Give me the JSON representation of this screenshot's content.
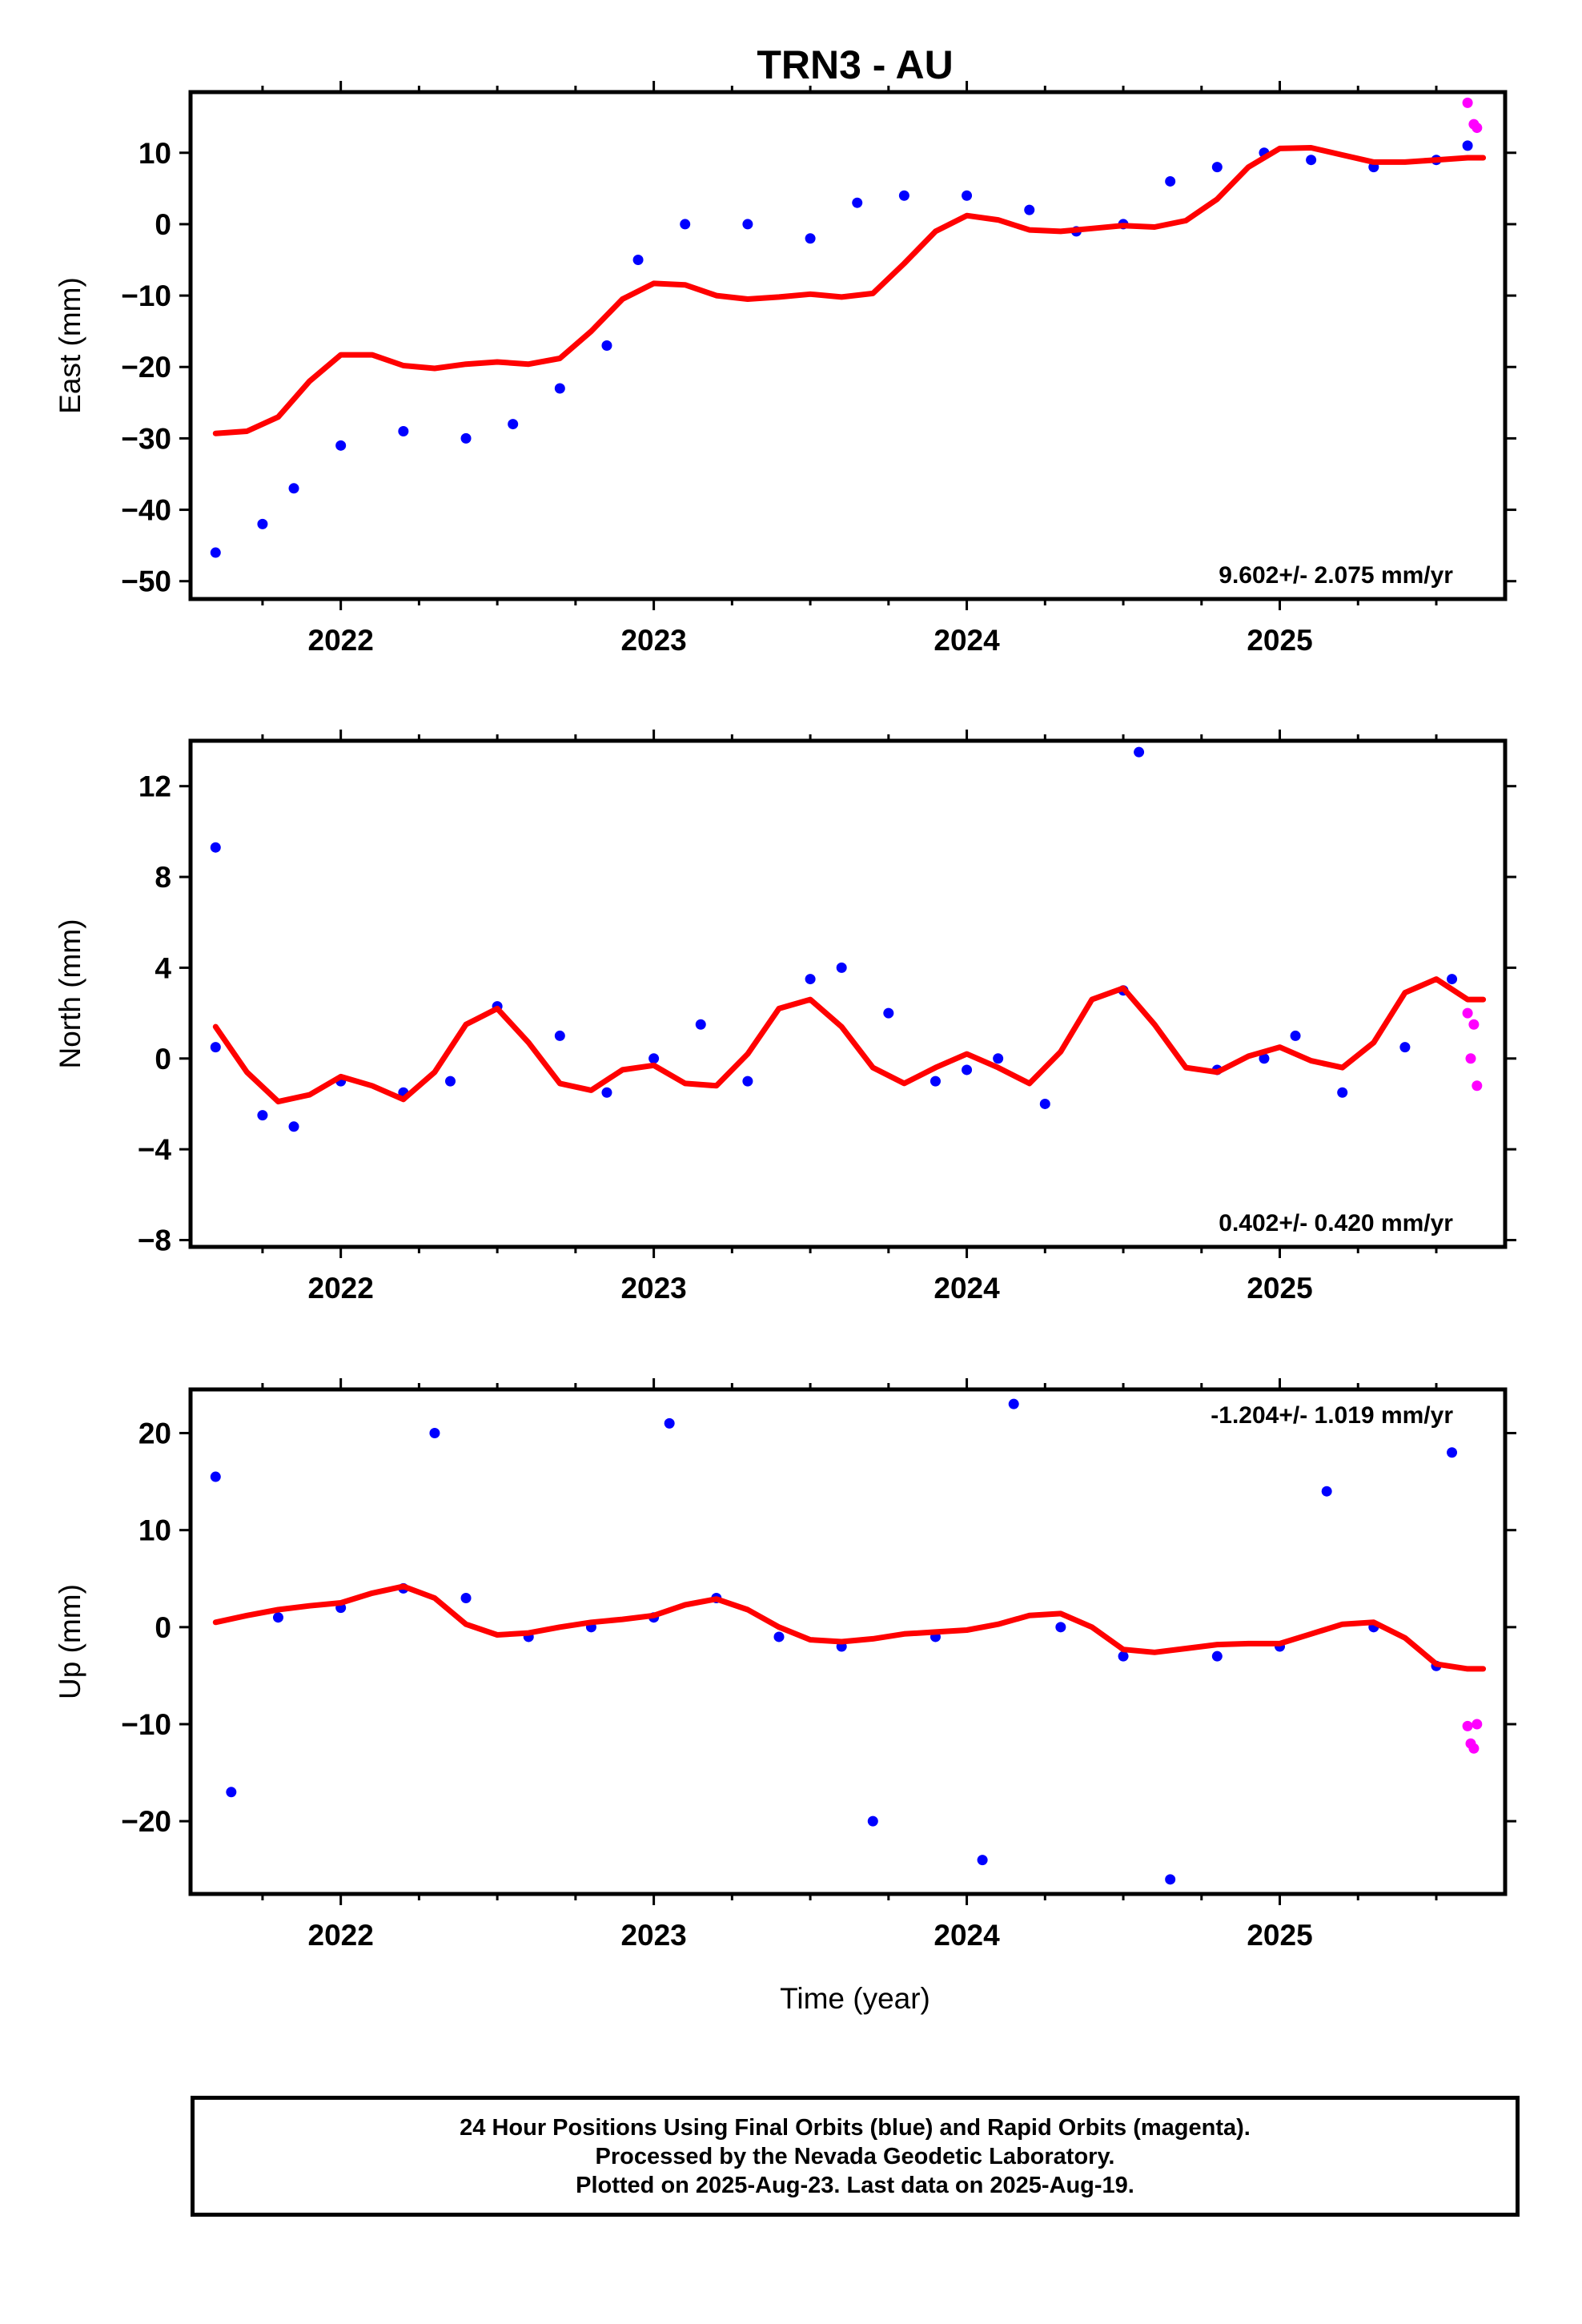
{
  "chart_data": [
    {
      "type": "scatter",
      "title": "TRN3 - AU",
      "ylabel": "East (mm)",
      "xlabel": "",
      "xlim": [
        2021.52,
        2025.72
      ],
      "ylim": [
        -52.5,
        18.5
      ],
      "x_ticks": [
        "2022",
        "2023",
        "2024",
        "2025"
      ],
      "y_ticks": [
        "10",
        "0",
        "−10",
        "−20",
        "−30",
        "−40",
        "−50"
      ],
      "y_tick_values": [
        10,
        0,
        -10,
        -20,
        -30,
        -40,
        -50
      ],
      "grid": false,
      "annotation": "9.602+/- 2.075 mm/yr",
      "annotation_position": "bottom-right",
      "series": [
        {
          "role": "final orbits",
          "color": "#0000ff",
          "marker": "dot",
          "x": [
            2021.6,
            2021.75,
            2021.85,
            2022.0,
            2022.2,
            2022.4,
            2022.55,
            2022.7,
            2022.85,
            2022.95,
            2023.1,
            2023.3,
            2023.5,
            2023.65,
            2023.8,
            2024.0,
            2024.2,
            2024.35,
            2024.5,
            2024.65,
            2024.8,
            2024.95,
            2025.1,
            2025.3,
            2025.5,
            2025.6
          ],
          "y": [
            -46,
            -42,
            -37,
            -31,
            -29,
            -30,
            -28,
            -23,
            -17,
            -5,
            0,
            0,
            -2,
            3,
            4,
            4,
            2,
            -1,
            0,
            6,
            8,
            10,
            9,
            8,
            9,
            11
          ]
        },
        {
          "role": "rapid orbits",
          "color": "#ff00ff",
          "marker": "dot",
          "x": [
            2025.6,
            2025.62,
            2025.63
          ],
          "y": [
            17,
            14,
            13.5
          ]
        },
        {
          "role": "trend fit",
          "color": "#ff0000",
          "line": true,
          "x": [
            2021.6,
            2021.7,
            2021.8,
            2021.9,
            2022.0,
            2022.1,
            2022.2,
            2022.3,
            2022.4,
            2022.5,
            2022.6,
            2022.7,
            2022.8,
            2022.9,
            2023.0,
            2023.1,
            2023.2,
            2023.3,
            2023.4,
            2023.5,
            2023.6,
            2023.7,
            2023.8,
            2023.9,
            2024.0,
            2024.1,
            2024.2,
            2024.3,
            2024.4,
            2024.5,
            2024.6,
            2024.7,
            2024.8,
            2024.9,
            2025.0,
            2025.1,
            2025.2,
            2025.3,
            2025.4,
            2025.5,
            2025.6,
            2025.65
          ],
          "y": [
            -29.3,
            -29,
            -27,
            -22,
            -18.3,
            -18.3,
            -19.8,
            -20.2,
            -19.6,
            -19.3,
            -19.6,
            -18.8,
            -15,
            -10.5,
            -8.3,
            -8.5,
            -10,
            -10.5,
            -10.2,
            -9.8,
            -10.2,
            -9.7,
            -5.5,
            -1,
            1.2,
            0.6,
            -0.8,
            -1,
            -0.6,
            -0.2,
            -0.4,
            0.5,
            3.5,
            8,
            10.6,
            10.7,
            9.7,
            8.7,
            8.7,
            9,
            9.3,
            9.3
          ]
        }
      ]
    },
    {
      "type": "scatter",
      "title": "",
      "ylabel": "North (mm)",
      "xlabel": "",
      "xlim": [
        2021.52,
        2025.72
      ],
      "ylim": [
        -8.3,
        14
      ],
      "x_ticks": [
        "2022",
        "2023",
        "2024",
        "2025"
      ],
      "y_ticks": [
        "12",
        "8",
        "4",
        "0",
        "−4",
        "−8"
      ],
      "y_tick_values": [
        12,
        8,
        4,
        0,
        -4,
        -8
      ],
      "grid": false,
      "annotation": "0.402+/- 0.420 mm/yr",
      "annotation_position": "bottom-right",
      "series": [
        {
          "role": "final orbits",
          "color": "#0000ff",
          "marker": "dot",
          "x": [
            2021.6,
            2021.6,
            2021.75,
            2021.85,
            2022.0,
            2022.2,
            2022.35,
            2022.5,
            2022.7,
            2022.85,
            2023.0,
            2023.15,
            2023.3,
            2023.5,
            2023.6,
            2023.75,
            2023.9,
            2024.0,
            2024.1,
            2024.25,
            2024.5,
            2024.55,
            2024.8,
            2024.95,
            2025.05,
            2025.2,
            2025.4,
            2025.55
          ],
          "y": [
            9.3,
            0.5,
            -2.5,
            -3,
            -1,
            -1.5,
            -1,
            2.3,
            1,
            -1.5,
            0,
            1.5,
            -1,
            3.5,
            4,
            2,
            -1,
            -0.5,
            0,
            -2,
            3,
            13.5,
            -0.5,
            0,
            1,
            -1.5,
            0.5,
            3.5
          ]
        },
        {
          "role": "rapid orbits",
          "color": "#ff00ff",
          "marker": "dot",
          "x": [
            2025.6,
            2025.61,
            2025.63,
            2025.62
          ],
          "y": [
            2,
            0,
            -1.2,
            1.5
          ]
        },
        {
          "role": "trend fit",
          "color": "#ff0000",
          "line": true,
          "x": [
            2021.6,
            2021.7,
            2021.8,
            2021.9,
            2022.0,
            2022.1,
            2022.2,
            2022.3,
            2022.4,
            2022.5,
            2022.6,
            2022.7,
            2022.8,
            2022.9,
            2023.0,
            2023.1,
            2023.2,
            2023.3,
            2023.4,
            2023.5,
            2023.6,
            2023.7,
            2023.8,
            2023.9,
            2024.0,
            2024.1,
            2024.2,
            2024.3,
            2024.4,
            2024.5,
            2024.6,
            2024.7,
            2024.8,
            2024.9,
            2025.0,
            2025.1,
            2025.2,
            2025.3,
            2025.4,
            2025.5,
            2025.6,
            2025.65
          ],
          "y": [
            1.4,
            -0.6,
            -1.9,
            -1.6,
            -0.8,
            -1.2,
            -1.8,
            -0.6,
            1.5,
            2.2,
            0.7,
            -1.1,
            -1.4,
            -0.5,
            -0.3,
            -1.1,
            -1.2,
            0.2,
            2.2,
            2.6,
            1.4,
            -0.4,
            -1.1,
            -0.4,
            0.2,
            -0.4,
            -1.1,
            0.3,
            2.6,
            3.1,
            1.5,
            -0.4,
            -0.6,
            0.1,
            0.5,
            -0.1,
            -0.4,
            0.7,
            2.9,
            3.5,
            2.6,
            2.6
          ]
        }
      ]
    },
    {
      "type": "scatter",
      "title": "",
      "ylabel": "Up (mm)",
      "xlabel": "Time (year)",
      "xlim": [
        2021.52,
        2025.72
      ],
      "ylim": [
        -27.5,
        24.5
      ],
      "x_ticks": [
        "2022",
        "2023",
        "2024",
        "2025"
      ],
      "y_ticks": [
        "20",
        "10",
        "0",
        "−10",
        "−20"
      ],
      "y_tick_values": [
        20,
        10,
        0,
        -10,
        -20
      ],
      "grid": false,
      "annotation": "-1.204+/- 1.019 mm/yr",
      "annotation_position": "top-right",
      "series": [
        {
          "role": "final orbits",
          "color": "#0000ff",
          "marker": "dot",
          "x": [
            2021.6,
            2021.65,
            2021.8,
            2022.0,
            2022.2,
            2022.3,
            2022.4,
            2022.6,
            2022.8,
            2023.0,
            2023.05,
            2023.2,
            2023.4,
            2023.6,
            2023.7,
            2023.9,
            2024.05,
            2024.15,
            2024.3,
            2024.5,
            2024.65,
            2024.8,
            2025.0,
            2025.15,
            2025.3,
            2025.5,
            2025.55
          ],
          "y": [
            15.5,
            -17,
            1,
            2,
            4,
            20,
            3,
            -1,
            0,
            1,
            21,
            3,
            -1,
            -2,
            -20,
            -1,
            -24,
            23,
            0,
            -3,
            -26,
            -3,
            -2,
            14,
            0,
            -4,
            18
          ]
        },
        {
          "role": "rapid orbits",
          "color": "#ff00ff",
          "marker": "dot",
          "x": [
            2025.6,
            2025.61,
            2025.62,
            2025.63
          ],
          "y": [
            -10.2,
            -12,
            -12.5,
            -10
          ]
        },
        {
          "role": "trend fit",
          "color": "#ff0000",
          "line": true,
          "x": [
            2021.6,
            2021.7,
            2021.8,
            2021.9,
            2022.0,
            2022.1,
            2022.2,
            2022.3,
            2022.4,
            2022.5,
            2022.6,
            2022.7,
            2022.8,
            2022.9,
            2023.0,
            2023.1,
            2023.2,
            2023.3,
            2023.4,
            2023.5,
            2023.6,
            2023.7,
            2023.8,
            2023.9,
            2024.0,
            2024.1,
            2024.2,
            2024.3,
            2024.4,
            2024.5,
            2024.6,
            2024.7,
            2024.8,
            2024.9,
            2025.0,
            2025.1,
            2025.2,
            2025.3,
            2025.4,
            2025.5,
            2025.6,
            2025.65
          ],
          "y": [
            0.5,
            1.2,
            1.8,
            2.2,
            2.5,
            3.5,
            4.2,
            3,
            0.3,
            -0.8,
            -0.6,
            0,
            0.5,
            0.8,
            1.2,
            2.3,
            2.9,
            1.8,
            0,
            -1.3,
            -1.5,
            -1.2,
            -0.7,
            -0.5,
            -0.3,
            0.3,
            1.2,
            1.4,
            0,
            -2.3,
            -2.6,
            -2.2,
            -1.8,
            -1.7,
            -1.7,
            -0.7,
            0.3,
            0.5,
            -1.1,
            -3.8,
            -4.3,
            -4.3
          ]
        }
      ]
    }
  ],
  "caption": {
    "line1": "24 Hour Positions Using Final Orbits (blue) and Rapid Orbits (magenta).",
    "line2": "Processed by the Nevada Geodetic Laboratory.",
    "line3": "Plotted on 2025-Aug-23. Last data on 2025-Aug-19."
  },
  "colors": {
    "final": "#0000ff",
    "rapid": "#ff00ff",
    "fit": "#ff0000"
  }
}
